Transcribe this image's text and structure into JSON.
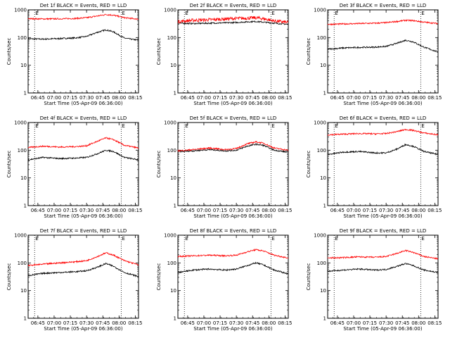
{
  "figure": {
    "tick_labels_x": [
      "06:45",
      "07:00",
      "07:15",
      "07:30",
      "07:45",
      "08:00",
      "08:15"
    ],
    "tick_labels_y": [
      "1",
      "10",
      "100",
      "1000"
    ],
    "xlabel": "Start Time (05-Apr-09 06:36:00)",
    "ylabel": "Counts/sec",
    "colors": {
      "events": "#000000",
      "lld": "#ff0000"
    }
  },
  "chart_data": [
    {
      "type": "line",
      "title": "Det 1f BLACK = Events, RED = LLD",
      "xlabel": "Start Time (05-Apr-09 06:36:00)",
      "ylabel": "Counts/sec",
      "x_range": [
        "06:36",
        "08:18"
      ],
      "ylim": [
        1,
        1000
      ],
      "y_scale": "log",
      "markers": [
        {
          "label": "E",
          "x": "06:42"
        },
        {
          "label": "E",
          "x": "08:02"
        }
      ],
      "series": [
        {
          "name": "Events",
          "color": "#000000",
          "points": [
            [
              "06:36",
              90
            ],
            [
              "06:50",
              88
            ],
            [
              "07:05",
              92
            ],
            [
              "07:20",
              97
            ],
            [
              "07:30",
              110
            ],
            [
              "07:40",
              155
            ],
            [
              "07:48",
              190
            ],
            [
              "07:55",
              160
            ],
            [
              "08:05",
              95
            ],
            [
              "08:18",
              80
            ]
          ]
        },
        {
          "name": "LLD",
          "color": "#ff0000",
          "points": [
            [
              "06:36",
              480
            ],
            [
              "06:50",
              470
            ],
            [
              "07:05",
              475
            ],
            [
              "07:20",
              490
            ],
            [
              "07:30",
              520
            ],
            [
              "07:40",
              600
            ],
            [
              "07:48",
              680
            ],
            [
              "07:55",
              640
            ],
            [
              "08:05",
              520
            ],
            [
              "08:18",
              460
            ]
          ]
        }
      ]
    },
    {
      "type": "line",
      "title": "Det 2f BLACK = Events, RED = LLD",
      "xlabel": "Start Time (05-Apr-09 06:36:00)",
      "ylabel": "Counts/sec",
      "x_range": [
        "06:36",
        "08:18"
      ],
      "ylim": [
        1,
        1000
      ],
      "y_scale": "log",
      "markers": [
        {
          "label": "E",
          "x": "06:42"
        },
        {
          "label": "E",
          "x": "08:02"
        }
      ],
      "series": [
        {
          "name": "Events",
          "color": "#000000",
          "points": [
            [
              "06:36",
              330
            ],
            [
              "06:50",
              320
            ],
            [
              "07:05",
              330
            ],
            [
              "07:20",
              340
            ],
            [
              "07:30",
              350
            ],
            [
              "07:40",
              370
            ],
            [
              "07:48",
              380
            ],
            [
              "07:55",
              360
            ],
            [
              "08:05",
              330
            ],
            [
              "08:18",
              300
            ]
          ]
        },
        {
          "name": "LLD",
          "color": "#ff0000",
          "points": [
            [
              "06:36",
              380
            ],
            [
              "06:50",
              420
            ],
            [
              "07:05",
              440
            ],
            [
              "07:20",
              470
            ],
            [
              "07:30",
              490
            ],
            [
              "07:40",
              500
            ],
            [
              "07:48",
              520
            ],
            [
              "07:55",
              480
            ],
            [
              "08:05",
              400
            ],
            [
              "08:18",
              350
            ]
          ]
        }
      ]
    },
    {
      "type": "line",
      "title": "Det 3f BLACK = Events, RED = LLD",
      "xlabel": "Start Time (05-Apr-09 06:36:00)",
      "ylabel": "Counts/sec",
      "x_range": [
        "06:36",
        "08:18"
      ],
      "ylim": [
        1,
        1000
      ],
      "y_scale": "log",
      "markers": [
        {
          "label": "E",
          "x": "06:42"
        },
        {
          "label": "E",
          "x": "08:02"
        }
      ],
      "series": [
        {
          "name": "Events",
          "color": "#000000",
          "points": [
            [
              "06:36",
              38
            ],
            [
              "06:50",
              42
            ],
            [
              "07:05",
              44
            ],
            [
              "07:20",
              45
            ],
            [
              "07:30",
              48
            ],
            [
              "07:40",
              62
            ],
            [
              "07:48",
              80
            ],
            [
              "07:55",
              70
            ],
            [
              "08:05",
              45
            ],
            [
              "08:18",
              30
            ]
          ]
        },
        {
          "name": "LLD",
          "color": "#ff0000",
          "points": [
            [
              "06:36",
              300
            ],
            [
              "06:50",
              310
            ],
            [
              "07:05",
              320
            ],
            [
              "07:20",
              330
            ],
            [
              "07:30",
              345
            ],
            [
              "07:40",
              380
            ],
            [
              "07:48",
              420
            ],
            [
              "07:55",
              410
            ],
            [
              "08:05",
              360
            ],
            [
              "08:18",
              320
            ]
          ]
        }
      ]
    },
    {
      "type": "line",
      "title": "Det 4f BLACK = Events, RED = LLD",
      "xlabel": "Start Time (05-Apr-09 06:36:00)",
      "ylabel": "Counts/sec",
      "x_range": [
        "06:36",
        "08:18"
      ],
      "ylim": [
        1,
        1000
      ],
      "y_scale": "log",
      "markers": [
        {
          "label": "E",
          "x": "06:42"
        },
        {
          "label": "E",
          "x": "08:02"
        }
      ],
      "series": [
        {
          "name": "Events",
          "color": "#000000",
          "points": [
            [
              "06:36",
              45
            ],
            [
              "06:50",
              55
            ],
            [
              "07:05",
              50
            ],
            [
              "07:20",
              52
            ],
            [
              "07:30",
              55
            ],
            [
              "07:40",
              75
            ],
            [
              "07:48",
              100
            ],
            [
              "07:55",
              90
            ],
            [
              "08:05",
              55
            ],
            [
              "08:18",
              45
            ]
          ]
        },
        {
          "name": "LLD",
          "color": "#ff0000",
          "points": [
            [
              "06:36",
              125
            ],
            [
              "06:50",
              140
            ],
            [
              "07:05",
              130
            ],
            [
              "07:20",
              135
            ],
            [
              "07:30",
              145
            ],
            [
              "07:40",
              210
            ],
            [
              "07:48",
              280
            ],
            [
              "07:55",
              240
            ],
            [
              "08:05",
              150
            ],
            [
              "08:18",
              120
            ]
          ]
        }
      ]
    },
    {
      "type": "line",
      "title": "Det 5f BLACK = Events, RED = LLD",
      "xlabel": "Start Time (05-Apr-09 06:36:00)",
      "ylabel": "Counts/sec",
      "x_range": [
        "06:36",
        "08:18"
      ],
      "ylim": [
        1,
        1000
      ],
      "y_scale": "log",
      "markers": [
        {
          "label": "E",
          "x": "06:42"
        },
        {
          "label": "E",
          "x": "08:02"
        }
      ],
      "series": [
        {
          "name": "Events",
          "color": "#000000",
          "points": [
            [
              "06:36",
              90
            ],
            [
              "06:50",
              95
            ],
            [
              "07:05",
              105
            ],
            [
              "07:20",
              95
            ],
            [
              "07:30",
              100
            ],
            [
              "07:40",
              140
            ],
            [
              "07:48",
              165
            ],
            [
              "07:55",
              150
            ],
            [
              "08:05",
              100
            ],
            [
              "08:18",
              85
            ]
          ]
        },
        {
          "name": "LLD",
          "color": "#ff0000",
          "points": [
            [
              "06:36",
              95
            ],
            [
              "06:50",
              105
            ],
            [
              "07:05",
              120
            ],
            [
              "07:20",
              105
            ],
            [
              "07:30",
              115
            ],
            [
              "07:40",
              170
            ],
            [
              "07:48",
              200
            ],
            [
              "07:55",
              180
            ],
            [
              "08:05",
              120
            ],
            [
              "08:18",
              100
            ]
          ]
        }
      ]
    },
    {
      "type": "line",
      "title": "Det 6f BLACK = Events, RED = LLD",
      "xlabel": "Start Time (05-Apr-09 06:36:00)",
      "ylabel": "Counts/sec",
      "x_range": [
        "06:36",
        "08:18"
      ],
      "ylim": [
        1,
        1000
      ],
      "y_scale": "log",
      "markers": [
        {
          "label": "E",
          "x": "06:42"
        },
        {
          "label": "E",
          "x": "08:02"
        }
      ],
      "series": [
        {
          "name": "Events",
          "color": "#000000",
          "points": [
            [
              "06:36",
              70
            ],
            [
              "06:50",
              85
            ],
            [
              "07:05",
              90
            ],
            [
              "07:20",
              80
            ],
            [
              "07:30",
              80
            ],
            [
              "07:40",
              110
            ],
            [
              "07:48",
              160
            ],
            [
              "07:55",
              140
            ],
            [
              "08:05",
              90
            ],
            [
              "08:18",
              70
            ]
          ]
        },
        {
          "name": "LLD",
          "color": "#ff0000",
          "points": [
            [
              "06:36",
              360
            ],
            [
              "06:50",
              380
            ],
            [
              "07:05",
              400
            ],
            [
              "07:20",
              390
            ],
            [
              "07:30",
              400
            ],
            [
              "07:40",
              470
            ],
            [
              "07:48",
              560
            ],
            [
              "07:55",
              520
            ],
            [
              "08:05",
              420
            ],
            [
              "08:18",
              360
            ]
          ]
        }
      ]
    },
    {
      "type": "line",
      "title": "Det 7f BLACK = Events, RED = LLD",
      "xlabel": "Start Time (05-Apr-09 06:36:00)",
      "ylabel": "Counts/sec",
      "x_range": [
        "06:36",
        "08:18"
      ],
      "ylim": [
        1,
        1000
      ],
      "y_scale": "log",
      "markers": [
        {
          "label": "E",
          "x": "06:42"
        },
        {
          "label": "E",
          "x": "08:02"
        }
      ],
      "series": [
        {
          "name": "Events",
          "color": "#000000",
          "points": [
            [
              "06:36",
              35
            ],
            [
              "06:50",
              42
            ],
            [
              "07:05",
              45
            ],
            [
              "07:20",
              48
            ],
            [
              "07:30",
              52
            ],
            [
              "07:40",
              70
            ],
            [
              "07:48",
              95
            ],
            [
              "07:55",
              75
            ],
            [
              "08:05",
              45
            ],
            [
              "08:18",
              32
            ]
          ]
        },
        {
          "name": "LLD",
          "color": "#ff0000",
          "points": [
            [
              "06:36",
              80
            ],
            [
              "06:50",
              90
            ],
            [
              "07:05",
              100
            ],
            [
              "07:20",
              110
            ],
            [
              "07:30",
              120
            ],
            [
              "07:40",
              170
            ],
            [
              "07:48",
              230
            ],
            [
              "07:55",
              190
            ],
            [
              "08:05",
              120
            ],
            [
              "08:18",
              85
            ]
          ]
        }
      ]
    },
    {
      "type": "line",
      "title": "Det 8f BLACK = Events, RED = LLD",
      "xlabel": "Start Time (05-Apr-09 06:36:00)",
      "ylabel": "Counts/sec",
      "x_range": [
        "06:36",
        "08:18"
      ],
      "ylim": [
        1,
        1000
      ],
      "y_scale": "log",
      "markers": [
        {
          "label": "E",
          "x": "06:42"
        },
        {
          "label": "E",
          "x": "08:02"
        }
      ],
      "series": [
        {
          "name": "Events",
          "color": "#000000",
          "points": [
            [
              "06:36",
              45
            ],
            [
              "06:50",
              55
            ],
            [
              "07:05",
              60
            ],
            [
              "07:20",
              55
            ],
            [
              "07:30",
              60
            ],
            [
              "07:40",
              80
            ],
            [
              "07:48",
              100
            ],
            [
              "07:55",
              85
            ],
            [
              "08:05",
              55
            ],
            [
              "08:18",
              40
            ]
          ]
        },
        {
          "name": "LLD",
          "color": "#ff0000",
          "points": [
            [
              "06:36",
              170
            ],
            [
              "06:50",
              180
            ],
            [
              "07:05",
              190
            ],
            [
              "07:20",
              180
            ],
            [
              "07:30",
              190
            ],
            [
              "07:40",
              250
            ],
            [
              "07:48",
              300
            ],
            [
              "07:55",
              270
            ],
            [
              "08:05",
              190
            ],
            [
              "08:18",
              150
            ]
          ]
        }
      ]
    },
    {
      "type": "line",
      "title": "Det 9f BLACK = Events, RED = LLD",
      "xlabel": "Start Time (05-Apr-09 06:36:00)",
      "ylabel": "Counts/sec",
      "x_range": [
        "06:36",
        "08:18"
      ],
      "ylim": [
        1,
        1000
      ],
      "y_scale": "log",
      "markers": [
        {
          "label": "E",
          "x": "06:42"
        },
        {
          "label": "E",
          "x": "08:02"
        }
      ],
      "series": [
        {
          "name": "Events",
          "color": "#000000",
          "points": [
            [
              "06:36",
              50
            ],
            [
              "06:50",
              55
            ],
            [
              "07:05",
              60
            ],
            [
              "07:20",
              55
            ],
            [
              "07:30",
              58
            ],
            [
              "07:40",
              75
            ],
            [
              "07:48",
              95
            ],
            [
              "07:55",
              80
            ],
            [
              "08:05",
              55
            ],
            [
              "08:18",
              45
            ]
          ]
        },
        {
          "name": "LLD",
          "color": "#ff0000",
          "points": [
            [
              "06:36",
              150
            ],
            [
              "06:50",
              155
            ],
            [
              "07:05",
              165
            ],
            [
              "07:20",
              160
            ],
            [
              "07:30",
              170
            ],
            [
              "07:40",
              220
            ],
            [
              "07:48",
              280
            ],
            [
              "07:55",
              240
            ],
            [
              "08:05",
              170
            ],
            [
              "08:18",
              140
            ]
          ]
        }
      ]
    }
  ]
}
